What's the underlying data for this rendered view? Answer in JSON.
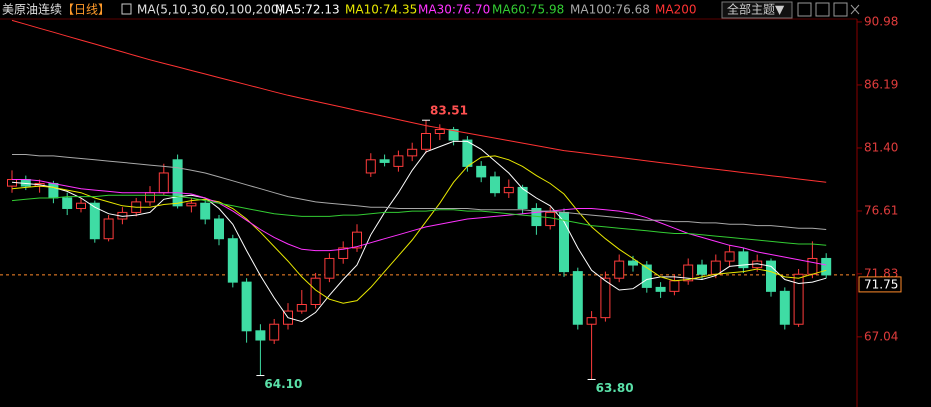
{
  "header": {
    "title": "美原油连续",
    "period": "【日线】",
    "ma_label": "MA(5,10,30,60,100,200)",
    "theme_button": "全部主题▼"
  },
  "chart_data": {
    "type": "candlestick",
    "ylim": [
      62.24,
      91.28
    ],
    "yticks": [
      90.98,
      86.19,
      {
        "value": 81.4,
        "label": "81.40"
      },
      76.61,
      71.83,
      67.04
    ],
    "up_color": "#ff3c3c",
    "down_color": "#3fdca4",
    "open": [
      78.5,
      79.0,
      78.5,
      78.7,
      77.6,
      76.8,
      77.2,
      74.5,
      76.0,
      76.5,
      77.3,
      78.0,
      80.5,
      77.0,
      77.2,
      76.0,
      74.5,
      71.2,
      67.5,
      66.8,
      68.0,
      69.0,
      69.5,
      71.5,
      73.0,
      73.8,
      79.5,
      80.5,
      80.0,
      80.8,
      81.3,
      82.5,
      82.8,
      82.0,
      80.0,
      79.2,
      78.0,
      78.4,
      76.8,
      75.5,
      76.5,
      72.0,
      68.0,
      68.5,
      71.5,
      72.8,
      72.5,
      70.8,
      70.5,
      71.3,
      72.5,
      71.8,
      72.8,
      73.5,
      72.3,
      72.8,
      70.5,
      68.0,
      71.8,
      73.0
    ],
    "high": [
      79.7,
      79.3,
      79.0,
      78.9,
      78.0,
      77.6,
      77.4,
      76.3,
      76.9,
      77.6,
      78.5,
      80.2,
      80.9,
      77.6,
      77.5,
      76.3,
      74.8,
      71.5,
      68.0,
      68.4,
      69.6,
      70.6,
      71.9,
      73.4,
      74.3,
      75.6,
      81.0,
      80.9,
      81.2,
      81.8,
      83.51,
      83.2,
      83.0,
      82.3,
      80.4,
      79.6,
      79.0,
      78.6,
      77.2,
      76.9,
      76.8,
      72.3,
      69.0,
      72.0,
      73.3,
      73.2,
      72.8,
      71.2,
      71.8,
      73.0,
      72.9,
      73.3,
      74.0,
      73.8,
      73.3,
      73.0,
      70.8,
      72.2,
      74.3,
      73.4
    ],
    "low": [
      78.0,
      78.2,
      78.0,
      77.2,
      76.3,
      76.5,
      74.2,
      74.3,
      75.6,
      76.2,
      77.0,
      77.8,
      76.8,
      76.5,
      75.6,
      74.0,
      70.8,
      66.6,
      64.1,
      66.5,
      67.6,
      68.8,
      69.2,
      71.2,
      72.6,
      73.5,
      79.2,
      80.0,
      79.6,
      80.4,
      81.0,
      82.0,
      81.6,
      79.6,
      78.8,
      77.7,
      77.6,
      76.4,
      74.8,
      75.2,
      71.6,
      67.6,
      63.8,
      68.2,
      71.2,
      72.0,
      70.4,
      70.0,
      70.2,
      71.0,
      71.4,
      71.5,
      72.4,
      71.9,
      72.0,
      70.1,
      67.6,
      67.8,
      71.5,
      71.5
    ],
    "close": [
      79.0,
      78.5,
      78.7,
      77.6,
      76.8,
      77.2,
      74.5,
      76.0,
      76.5,
      77.3,
      78.0,
      79.5,
      77.0,
      77.2,
      76.0,
      74.5,
      71.2,
      67.5,
      66.8,
      68.0,
      69.0,
      69.5,
      71.5,
      73.0,
      73.8,
      75.0,
      80.5,
      80.3,
      80.8,
      81.3,
      82.5,
      82.8,
      82.0,
      80.0,
      79.2,
      78.0,
      78.4,
      76.8,
      75.5,
      76.5,
      72.0,
      68.0,
      68.5,
      71.5,
      72.8,
      72.5,
      70.8,
      70.5,
      71.3,
      72.5,
      71.8,
      72.8,
      73.5,
      72.3,
      72.8,
      70.5,
      68.0,
      71.8,
      73.0,
      71.75
    ],
    "series": [
      {
        "name": "MA5:72.13",
        "color": "#ffffff",
        "values": [
          78.8,
          78.7,
          78.6,
          78.4,
          78.1,
          77.6,
          76.9,
          76.4,
          76.2,
          76.3,
          76.5,
          77.5,
          77.7,
          77.8,
          77.6,
          76.8,
          75.6,
          73.6,
          71.7,
          70.0,
          68.5,
          68.2,
          68.9,
          70.2,
          71.4,
          72.5,
          74.8,
          76.5,
          78.0,
          79.7,
          81.1,
          81.5,
          81.9,
          81.9,
          81.3,
          80.4,
          79.5,
          78.3,
          77.6,
          77.0,
          75.8,
          73.8,
          72.1,
          71.3,
          70.6,
          70.7,
          71.4,
          71.6,
          71.6,
          71.5,
          71.4,
          71.7,
          72.4,
          72.5,
          72.6,
          72.4,
          71.4,
          71.1,
          71.2,
          71.5
        ]
      },
      {
        "name": "MA10:74.35",
        "color": "#e8e800",
        "values": [
          78.3,
          78.4,
          78.5,
          78.4,
          78.2,
          78.0,
          77.6,
          77.3,
          77.0,
          76.9,
          76.9,
          77.1,
          77.2,
          77.4,
          77.5,
          77.3,
          76.8,
          76.0,
          75.0,
          73.9,
          72.8,
          71.6,
          70.6,
          69.9,
          69.6,
          69.8,
          70.8,
          72.0,
          73.2,
          74.4,
          75.8,
          77.2,
          78.8,
          80.0,
          80.7,
          80.8,
          80.5,
          80.0,
          79.3,
          78.7,
          77.9,
          76.6,
          75.4,
          74.5,
          73.7,
          73.0,
          72.3,
          71.6,
          71.3,
          71.4,
          71.6,
          71.8,
          71.9,
          72.0,
          72.2,
          72.0,
          71.6,
          71.5,
          71.8,
          72.1
        ]
      },
      {
        "name": "MA30:76.70",
        "color": "#ff33ff",
        "values": [
          79.0,
          79.0,
          78.9,
          78.7,
          78.5,
          78.3,
          78.2,
          78.1,
          78.0,
          78.0,
          78.0,
          78.0,
          78.0,
          77.9,
          77.6,
          77.2,
          76.6,
          75.9,
          75.2,
          74.6,
          74.1,
          73.7,
          73.6,
          73.6,
          73.7,
          73.9,
          74.2,
          74.5,
          74.8,
          75.1,
          75.4,
          75.6,
          75.8,
          76.0,
          76.1,
          76.2,
          76.3,
          76.4,
          76.5,
          76.6,
          76.7,
          76.8,
          76.8,
          76.7,
          76.6,
          76.4,
          76.1,
          75.7,
          75.3,
          74.9,
          74.6,
          74.3,
          74.0,
          73.8,
          73.5,
          73.3,
          73.1,
          72.9,
          72.7,
          72.5
        ]
      },
      {
        "name": "MA60:75.98",
        "color": "#33cc33",
        "values": [
          77.4,
          77.5,
          77.6,
          77.6,
          77.7,
          77.7,
          77.7,
          77.8,
          77.8,
          77.8,
          77.8,
          77.8,
          77.7,
          77.6,
          77.4,
          77.2,
          77.0,
          76.8,
          76.6,
          76.4,
          76.3,
          76.2,
          76.2,
          76.2,
          76.3,
          76.3,
          76.4,
          76.5,
          76.5,
          76.6,
          76.6,
          76.7,
          76.7,
          76.6,
          76.6,
          76.5,
          76.4,
          76.3,
          76.2,
          76.1,
          75.9,
          75.7,
          75.5,
          75.4,
          75.3,
          75.2,
          75.1,
          75.0,
          74.9,
          74.9,
          74.8,
          74.7,
          74.6,
          74.5,
          74.4,
          74.3,
          74.2,
          74.1,
          74.1,
          74.0
        ]
      },
      {
        "name": "MA100:76.68",
        "color": "#a8a8a8",
        "values": [
          80.9,
          80.9,
          80.8,
          80.8,
          80.7,
          80.6,
          80.5,
          80.4,
          80.3,
          80.2,
          80.1,
          80.0,
          79.9,
          79.7,
          79.5,
          79.2,
          78.9,
          78.6,
          78.3,
          78.0,
          77.7,
          77.5,
          77.3,
          77.2,
          77.1,
          77.0,
          76.9,
          76.9,
          76.8,
          76.8,
          76.8,
          76.8,
          76.8,
          76.8,
          76.7,
          76.7,
          76.7,
          76.7,
          76.6,
          76.6,
          76.5,
          76.4,
          76.3,
          76.2,
          76.1,
          76.0,
          75.9,
          75.9,
          75.8,
          75.8,
          75.7,
          75.7,
          75.6,
          75.6,
          75.5,
          75.5,
          75.4,
          75.3,
          75.3,
          75.2
        ]
      },
      {
        "name": "MA200",
        "color": "#ff3333",
        "values": [
          91.1,
          90.8,
          90.5,
          90.2,
          89.9,
          89.6,
          89.3,
          89.0,
          88.7,
          88.4,
          88.1,
          87.83,
          87.56,
          87.29,
          87.02,
          86.75,
          86.48,
          86.21,
          85.94,
          85.67,
          85.4,
          85.17,
          84.94,
          84.71,
          84.48,
          84.25,
          84.02,
          83.79,
          83.56,
          83.33,
          83.1,
          82.91,
          82.72,
          82.53,
          82.34,
          82.15,
          81.96,
          81.77,
          81.58,
          81.39,
          81.2,
          81.07,
          80.94,
          80.81,
          80.68,
          80.55,
          80.42,
          80.29,
          80.16,
          80.03,
          79.9,
          79.78,
          79.66,
          79.53,
          79.41,
          79.29,
          79.17,
          79.04,
          78.92,
          78.8
        ]
      }
    ],
    "annotations": [
      {
        "label": "83.51",
        "value": 83.51
      },
      {
        "label": "64.10",
        "value": 64.1
      },
      {
        "label": "63.80",
        "value": 63.8
      }
    ],
    "last": {
      "label": "71.75",
      "value": 71.75
    }
  }
}
